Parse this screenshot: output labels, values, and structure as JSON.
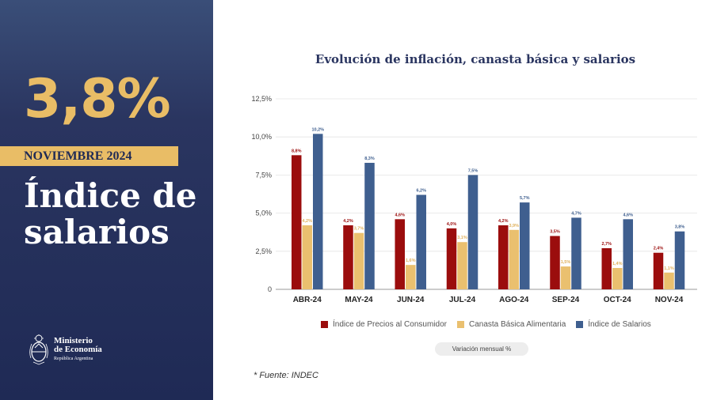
{
  "panel": {
    "value": "3,8%",
    "period": "NOVIEMBRE 2024",
    "title": "Índice de salarios",
    "logo": {
      "line1": "Ministerio",
      "line2": "de Economía",
      "line3": "República Argentina"
    }
  },
  "colors": {
    "ipc": "#9b0d0d",
    "cba": "#eac06f",
    "salarios": "#3f5f8f",
    "accent": "#e9bd66",
    "navy": "#1f2a55"
  },
  "chart_data": {
    "type": "bar",
    "title": "Evolución de inflación, canasta básica y salarios",
    "categories": [
      "ABR-24",
      "MAY-24",
      "JUN-24",
      "JUL-24",
      "AGO-24",
      "SEP-24",
      "OCT-24",
      "NOV-24"
    ],
    "series": [
      {
        "name": "Índice de Precios al Consumidor",
        "values": [
          8.8,
          4.2,
          4.6,
          4.0,
          4.2,
          3.5,
          2.7,
          2.4
        ],
        "labels": [
          "8,8%",
          "4,2%",
          "4,6%",
          "4,0%",
          "4,2%",
          "3,5%",
          "2,7%",
          "2,4%"
        ]
      },
      {
        "name": "Canasta Básica Alimentaria",
        "values": [
          4.2,
          3.7,
          1.6,
          3.1,
          3.9,
          1.5,
          1.4,
          1.1
        ],
        "labels": [
          "4,2%",
          "3,7%",
          "1,6%",
          "3,1%",
          "3,9%",
          "1,5%",
          "1,4%",
          "1,1%"
        ]
      },
      {
        "name": "Índice de Salarios",
        "values": [
          10.2,
          8.3,
          6.2,
          7.5,
          5.7,
          4.7,
          4.6,
          3.8
        ],
        "labels": [
          "10,2%",
          "8,3%",
          "6,2%",
          "7,5%",
          "5,7%",
          "4,7%",
          "4,6%",
          "3,8%"
        ]
      }
    ],
    "yticks": [
      0,
      2.5,
      5.0,
      7.5,
      10.0,
      12.5
    ],
    "ytick_labels": [
      "0",
      "2,5%",
      "5,0%",
      "7,5%",
      "10,0%",
      "12,5%"
    ],
    "ylim": [
      0,
      12.5
    ],
    "unit_label": "Variación mensual %",
    "source": "* Fuente: INDEC"
  }
}
